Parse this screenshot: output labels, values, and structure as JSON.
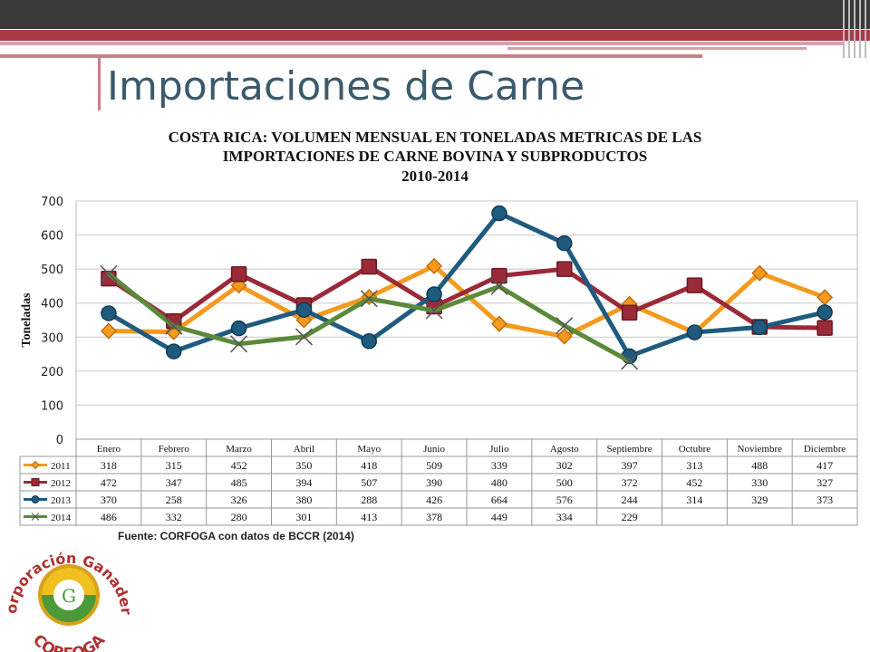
{
  "page_title": "Importaciones de Carne",
  "chart_title_lines": [
    "COSTA RICA: VOLUMEN MENSUAL EN TONELADAS METRICAS DE LAS",
    "IMPORTACIONES DE CARNE BOVINA Y SUBPRODUCTOS",
    "2010-2014"
  ],
  "source": "Fuente: CORFOGA con datos de BCCR (2014)",
  "logo": {
    "text_top": "Corporación Ganadera",
    "text_bottom": "CORFOGA"
  },
  "chart_data": {
    "type": "line",
    "title": "COSTA RICA: VOLUMEN MENSUAL EN TONELADAS METRICAS DE LAS IMPORTACIONES DE CARNE BOVINA Y SUBPRODUCTOS 2010-2014",
    "ylabel": "Toneladas",
    "xlabel": "",
    "ylim": [
      0,
      700
    ],
    "yticks": [
      0,
      100,
      200,
      300,
      400,
      500,
      600,
      700
    ],
    "grid": true,
    "legend": "data-table",
    "categories": [
      "Enero",
      "Febrero",
      "Marzo",
      "Abril",
      "Mayo",
      "Junio",
      "Julio",
      "Agosto",
      "Septiembre",
      "Octubre",
      "Noviembre",
      "Diciembre"
    ],
    "series": [
      {
        "name": "2011",
        "color": "#f39a1f",
        "marker": "diamond",
        "values": [
          318,
          315,
          452,
          350,
          418,
          509,
          339,
          302,
          397,
          313,
          488,
          417
        ]
      },
      {
        "name": "2012",
        "color": "#9b2a39",
        "marker": "square",
        "values": [
          472,
          347,
          485,
          394,
          507,
          390,
          480,
          500,
          372,
          452,
          330,
          327
        ]
      },
      {
        "name": "2013",
        "color": "#1f5b7e",
        "marker": "circle",
        "values": [
          370,
          258,
          326,
          380,
          288,
          426,
          664,
          576,
          244,
          314,
          329,
          373
        ]
      },
      {
        "name": "2014",
        "color": "#5a8a3a",
        "marker": "x",
        "values": [
          486,
          332,
          280,
          301,
          413,
          378,
          449,
          334,
          229,
          null,
          null,
          null
        ]
      }
    ]
  }
}
